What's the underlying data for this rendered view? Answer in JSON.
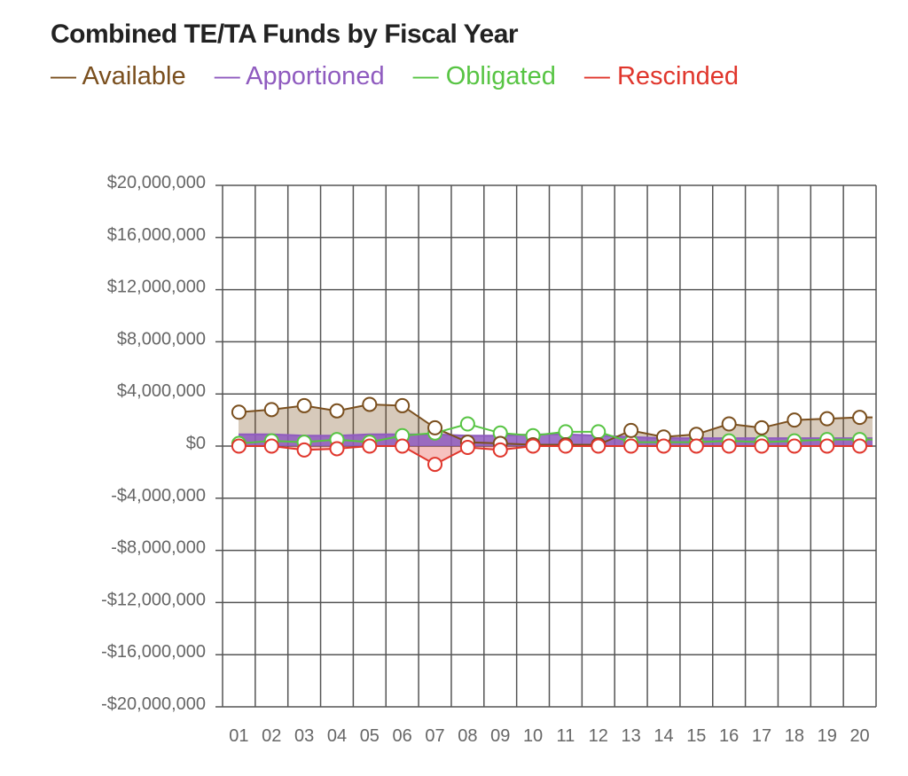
{
  "colors": {
    "available": "#7a4f1e",
    "apportioned": "#8f5bbf",
    "obligated": "#57c443",
    "rescinded": "#e0362c",
    "grid": "#555555"
  },
  "chart_data": {
    "type": "line",
    "title": "Combined TE/TA Funds by Fiscal Year",
    "xlabel": "",
    "ylabel": "",
    "ylim": [
      -20000000,
      20000000
    ],
    "grid": true,
    "legend_position": "top-left",
    "categories": [
      "01",
      "02",
      "03",
      "04",
      "05",
      "06",
      "07",
      "08",
      "09",
      "10",
      "11",
      "12",
      "13",
      "14",
      "15",
      "16",
      "17",
      "18",
      "19",
      "20"
    ],
    "y_ticks": [
      20000000,
      16000000,
      12000000,
      8000000,
      4000000,
      0,
      -4000000,
      -8000000,
      -12000000,
      -16000000,
      -20000000
    ],
    "y_tick_labels": [
      "$20,000,000",
      "$16,000,000",
      "$12,000,000",
      "$8,000,000",
      "$4,000,000",
      "$0",
      "-$4,000,000",
      "-$8,000,000",
      "-$12,000,000",
      "-$16,000,000",
      "-$20,000,000"
    ],
    "series": [
      {
        "name": "Available",
        "key": "available",
        "values": [
          2600000,
          2800000,
          3100000,
          2700000,
          3200000,
          3100000,
          1400000,
          300000,
          200000,
          100000,
          100000,
          100000,
          1200000,
          700000,
          900000,
          1700000,
          1400000,
          2000000,
          2100000,
          2200000
        ]
      },
      {
        "name": "Apportioned",
        "key": "apportioned",
        "values": [
          900000,
          900000,
          800000,
          800000,
          900000,
          900000,
          900000,
          800000,
          800000,
          900000,
          900000,
          800000,
          700000,
          600000,
          600000,
          600000,
          600000,
          600000,
          600000,
          600000
        ]
      },
      {
        "name": "Obligated",
        "key": "obligated",
        "values": [
          200000,
          400000,
          300000,
          500000,
          300000,
          800000,
          1000000,
          1700000,
          1000000,
          800000,
          1100000,
          1100000,
          300000,
          300000,
          300000,
          400000,
          300000,
          400000,
          500000,
          500000
        ]
      },
      {
        "name": "Rescinded",
        "key": "rescinded",
        "values": [
          0,
          0,
          -300000,
          -200000,
          0,
          0,
          -1400000,
          -100000,
          -300000,
          0,
          0,
          0,
          0,
          0,
          0,
          0,
          0,
          0,
          0,
          0
        ]
      }
    ]
  }
}
